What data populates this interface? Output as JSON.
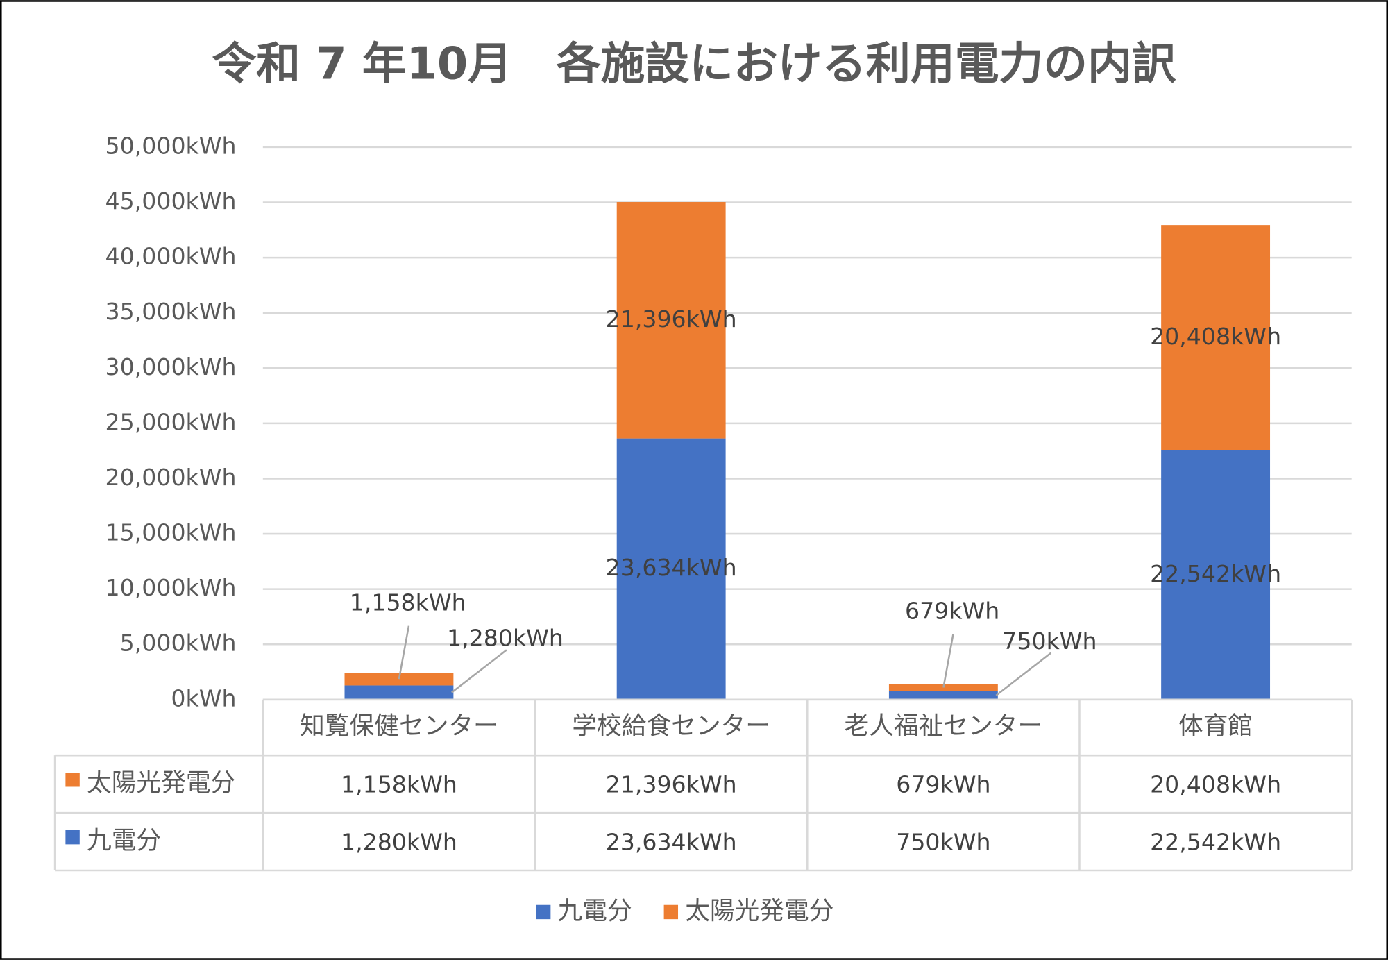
{
  "chart_data": {
    "type": "stacked_bar",
    "title": "令和 7 年10月　各施設における利用電力の内訳",
    "categories": [
      "知覧保健センター",
      "学校給食センター",
      "老人福祉センター",
      "体育館"
    ],
    "series": [
      {
        "name": "九電分",
        "color": "#4472c4",
        "values": [
          1280,
          23634,
          750,
          22542
        ],
        "value_labels": [
          "1,280kWh",
          "23,634kWh",
          "750kWh",
          "22,542kWh"
        ]
      },
      {
        "name": "太陽光発電分",
        "color": "#ed7d31",
        "values": [
          1158,
          21396,
          679,
          20408
        ],
        "value_labels": [
          "1,158kWh",
          "21,396kWh",
          "679kWh",
          "20,408kWh"
        ]
      }
    ],
    "ylim": [
      0,
      50000
    ],
    "yticks": [
      {
        "value": 0,
        "label": "0kWh"
      },
      {
        "value": 5000,
        "label": "5,000kWh"
      },
      {
        "value": 10000,
        "label": "10,000kWh"
      },
      {
        "value": 15000,
        "label": "15,000kWh"
      },
      {
        "value": 20000,
        "label": "20,000kWh"
      },
      {
        "value": 25000,
        "label": "25,000kWh"
      },
      {
        "value": 30000,
        "label": "30,000kWh"
      },
      {
        "value": 35000,
        "label": "35,000kWh"
      },
      {
        "value": 40000,
        "label": "40,000kWh"
      },
      {
        "value": 45000,
        "label": "45,000kWh"
      },
      {
        "value": 50000,
        "label": "50,000kWh"
      }
    ],
    "grid": true,
    "data_table": true,
    "legend": "bottom"
  }
}
